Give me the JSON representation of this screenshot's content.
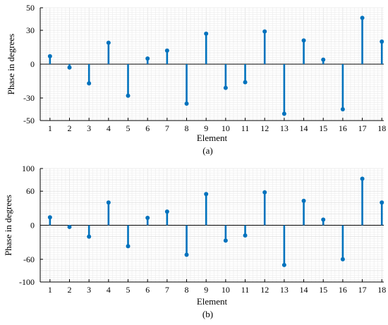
{
  "colors": {
    "stem": "#0072BD",
    "grid_minor": "#ececec",
    "grid_major": "#d9d9d9",
    "axis": "#000000"
  },
  "chart_data": [
    {
      "type": "stem",
      "caption": "(a)",
      "xlabel": "Element",
      "ylabel": "Phase in degrees",
      "x": [
        1,
        2,
        3,
        4,
        5,
        6,
        7,
        8,
        9,
        10,
        11,
        12,
        13,
        14,
        15,
        16,
        17,
        18
      ],
      "values": [
        7,
        -3,
        -17,
        19,
        -28,
        5,
        12,
        -35,
        27,
        -21,
        -16,
        29,
        -44,
        21,
        4,
        -40,
        41,
        20
      ],
      "xlim": [
        0.5,
        18.1
      ],
      "ylim": [
        -50,
        50
      ],
      "yticks": [
        -50,
        -30,
        0,
        30,
        50
      ],
      "xticks": [
        1,
        2,
        3,
        4,
        5,
        6,
        7,
        8,
        9,
        10,
        11,
        12,
        13,
        14,
        15,
        16,
        17,
        18
      ],
      "grid": true
    },
    {
      "type": "stem",
      "caption": "(b)",
      "xlabel": "Element",
      "ylabel": "Phase in degrees",
      "x": [
        1,
        2,
        3,
        4,
        5,
        6,
        7,
        8,
        9,
        10,
        11,
        12,
        13,
        14,
        15,
        16,
        17,
        18
      ],
      "values": [
        14,
        -3,
        -20,
        40,
        -37,
        13,
        24,
        -52,
        55,
        -27,
        -18,
        58,
        -70,
        43,
        10,
        -60,
        82,
        40
      ],
      "xlim": [
        0.5,
        18.1
      ],
      "ylim": [
        -100,
        100
      ],
      "yticks": [
        -100,
        -60,
        0,
        60,
        100
      ],
      "xticks": [
        1,
        2,
        3,
        4,
        5,
        6,
        7,
        8,
        9,
        10,
        11,
        12,
        13,
        14,
        15,
        16,
        17,
        18
      ],
      "grid": true
    }
  ]
}
